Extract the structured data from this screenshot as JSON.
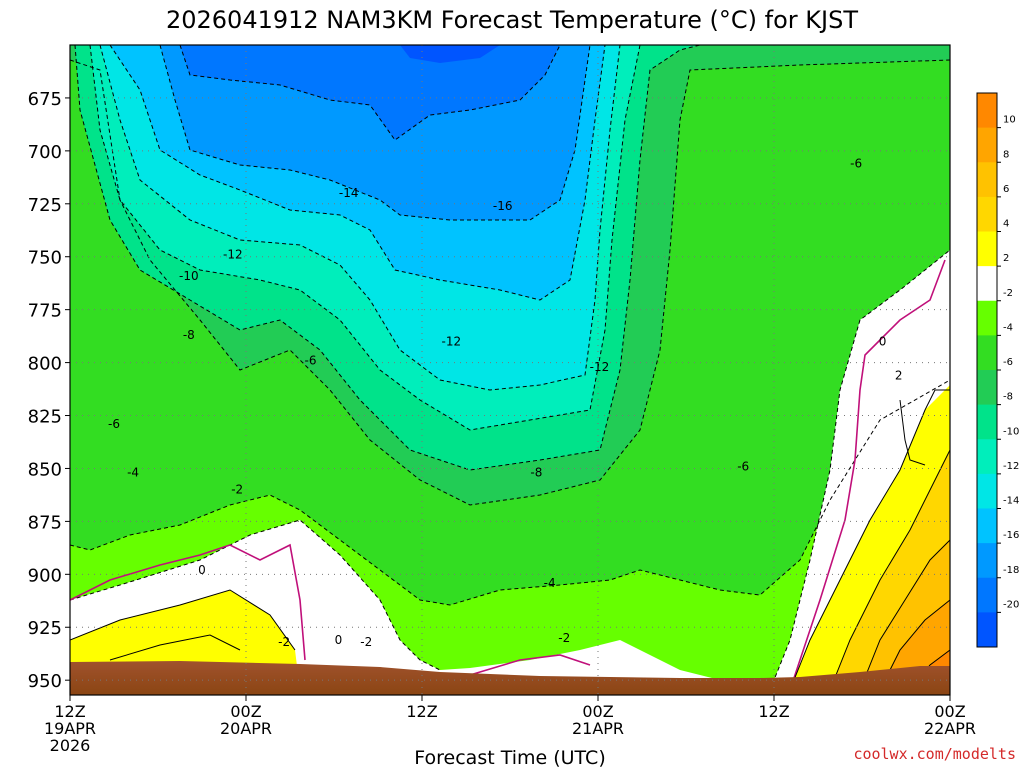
{
  "chart_data": {
    "type": "heatmap",
    "title": "2026041912 NAM3KM Forecast Temperature (°C) for KJST",
    "xlabel": "Forecast Time (UTC)",
    "ylabel": "",
    "credit": "coolwx.com/modelts",
    "x_ticks": [
      {
        "hour": 0,
        "line1": "12Z",
        "line2": "19APR",
        "line3": "2026"
      },
      {
        "hour": 12,
        "line1": "00Z",
        "line2": "20APR",
        "line3": ""
      },
      {
        "hour": 24,
        "line1": "12Z",
        "line2": "",
        "line3": ""
      },
      {
        "hour": 36,
        "line1": "00Z",
        "line2": "21APR",
        "line3": ""
      },
      {
        "hour": 48,
        "line1": "12Z",
        "line2": "",
        "line3": ""
      },
      {
        "hour": 60,
        "line1": "00Z",
        "line2": "22APR",
        "line3": ""
      }
    ],
    "xlim_hours": [
      0,
      60
    ],
    "y_ticks": [
      "675",
      "700",
      "725",
      "750",
      "775",
      "800",
      "825",
      "850",
      "875",
      "900",
      "925",
      "950"
    ],
    "ylim_hpa": [
      650,
      957
    ],
    "colorbar_ticks": [
      "10",
      "8",
      "6",
      "4",
      "2",
      "-2",
      "-4",
      "-6",
      "-8",
      "-10",
      "-12",
      "-14",
      "-16",
      "-18",
      "-20"
    ],
    "colorbar_colors": [
      "#ff8800",
      "#ffa500",
      "#ffc200",
      "#ffd700",
      "#ffff00",
      "#ffffff",
      "#66ff00",
      "#33dd22",
      "#22cc55",
      "#00e38a",
      "#00eebb",
      "#00e6e6",
      "#00c3ff",
      "#0099ff",
      "#0077ff",
      "#0055ff"
    ],
    "contour_labels": [
      {
        "text": "-14",
        "hour": 19.0,
        "p": 720
      },
      {
        "text": "-16",
        "hour": 29.5,
        "p": 726
      },
      {
        "text": "-12",
        "hour": 11.1,
        "p": 749
      },
      {
        "text": "-10",
        "hour": 8.1,
        "p": 759
      },
      {
        "text": "-12",
        "hour": 26.0,
        "p": 790
      },
      {
        "text": "-8",
        "hour": 8.1,
        "p": 787
      },
      {
        "text": "-6",
        "hour": 16.4,
        "p": 799
      },
      {
        "text": "-12",
        "hour": 36.1,
        "p": 802
      },
      {
        "text": "-6",
        "hour": 3.0,
        "p": 829
      },
      {
        "text": "-4",
        "hour": 4.3,
        "p": 852
      },
      {
        "text": "-2",
        "hour": 11.4,
        "p": 860
      },
      {
        "text": "-8",
        "hour": 31.8,
        "p": 852
      },
      {
        "text": "-6",
        "hour": 45.9,
        "p": 849
      },
      {
        "text": "-6",
        "hour": 53.6,
        "p": 706
      },
      {
        "text": "0",
        "hour": 9.0,
        "p": 898
      },
      {
        "text": "-2",
        "hour": 14.6,
        "p": 932
      },
      {
        "text": "0",
        "hour": 18.3,
        "p": 931
      },
      {
        "text": "-2",
        "hour": 20.2,
        "p": 932
      },
      {
        "text": "-4",
        "hour": 32.7,
        "p": 904
      },
      {
        "text": "-2",
        "hour": 33.7,
        "p": 930
      },
      {
        "text": "0",
        "hour": 55.4,
        "p": 790
      },
      {
        "text": "2",
        "hour": 56.5,
        "p": 806
      }
    ]
  }
}
